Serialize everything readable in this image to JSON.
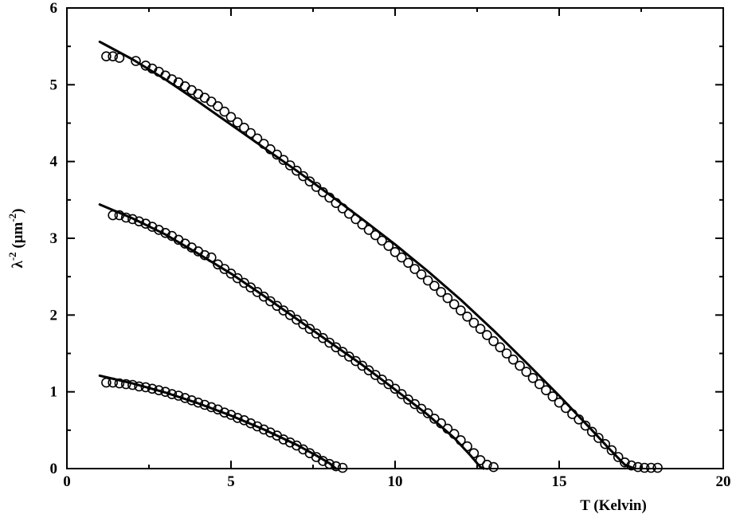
{
  "chart_data": {
    "type": "scatter",
    "title": "",
    "xlabel": "T (Kelvin)",
    "ylabel_parts": {
      "symbol": "λ",
      "sup1": "-2",
      "unit_open": " (μm",
      "sup2": "-2",
      "unit_close": ")"
    },
    "xlim": [
      0,
      20
    ],
    "ylim": [
      0,
      6
    ],
    "x_ticks": [
      0,
      5,
      10,
      15,
      20
    ],
    "y_ticks": [
      0,
      1,
      2,
      3,
      4,
      5,
      6
    ],
    "grid": false,
    "legend": "none",
    "colors": {
      "marker": "#000000",
      "line": "#000000",
      "background": "#ffffff"
    },
    "series": [
      {
        "points": [
          [
            1.2,
            5.37
          ],
          [
            1.4,
            5.37
          ],
          [
            1.6,
            5.35
          ],
          [
            2.1,
            5.31
          ],
          [
            2.4,
            5.25
          ],
          [
            2.6,
            5.21
          ],
          [
            2.8,
            5.17
          ],
          [
            3.0,
            5.12
          ],
          [
            3.2,
            5.07
          ],
          [
            3.4,
            5.03
          ],
          [
            3.6,
            4.98
          ],
          [
            3.8,
            4.93
          ],
          [
            4.0,
            4.88
          ],
          [
            4.2,
            4.83
          ],
          [
            4.4,
            4.78
          ],
          [
            4.6,
            4.72
          ],
          [
            4.8,
            4.65
          ],
          [
            5.0,
            4.58
          ],
          [
            5.2,
            4.51
          ],
          [
            5.4,
            4.44
          ],
          [
            5.6,
            4.37
          ],
          [
            5.8,
            4.3
          ],
          [
            6.0,
            4.23
          ],
          [
            6.2,
            4.16
          ],
          [
            6.4,
            4.09
          ],
          [
            6.6,
            4.02
          ],
          [
            6.8,
            3.95
          ],
          [
            7.0,
            3.88
          ],
          [
            7.2,
            3.81
          ],
          [
            7.4,
            3.74
          ],
          [
            7.6,
            3.67
          ],
          [
            7.8,
            3.6
          ],
          [
            8.0,
            3.53
          ],
          [
            8.2,
            3.46
          ],
          [
            8.4,
            3.39
          ],
          [
            8.6,
            3.32
          ],
          [
            8.8,
            3.25
          ],
          [
            9.0,
            3.18
          ],
          [
            9.2,
            3.11
          ],
          [
            9.4,
            3.04
          ],
          [
            9.6,
            2.97
          ],
          [
            9.8,
            2.9
          ],
          [
            10.0,
            2.82
          ],
          [
            10.2,
            2.75
          ],
          [
            10.4,
            2.68
          ],
          [
            10.6,
            2.6
          ],
          [
            10.8,
            2.53
          ],
          [
            11.0,
            2.45
          ],
          [
            11.2,
            2.38
          ],
          [
            11.4,
            2.3
          ],
          [
            11.6,
            2.22
          ],
          [
            11.8,
            2.14
          ],
          [
            12.0,
            2.06
          ],
          [
            12.2,
            1.98
          ],
          [
            12.4,
            1.9
          ],
          [
            12.6,
            1.82
          ],
          [
            12.8,
            1.74
          ],
          [
            13.0,
            1.66
          ],
          [
            13.2,
            1.58
          ],
          [
            13.4,
            1.5
          ],
          [
            13.6,
            1.42
          ],
          [
            13.8,
            1.34
          ],
          [
            14.0,
            1.26
          ],
          [
            14.2,
            1.18
          ],
          [
            14.4,
            1.1
          ],
          [
            14.6,
            1.02
          ],
          [
            14.8,
            0.94
          ],
          [
            15.0,
            0.86
          ],
          [
            15.2,
            0.79
          ],
          [
            15.4,
            0.71
          ],
          [
            15.6,
            0.64
          ],
          [
            15.8,
            0.56
          ],
          [
            16.0,
            0.48
          ],
          [
            16.2,
            0.4
          ],
          [
            16.4,
            0.32
          ],
          [
            16.6,
            0.24
          ],
          [
            16.8,
            0.15
          ],
          [
            17.0,
            0.08
          ],
          [
            17.2,
            0.04
          ],
          [
            17.4,
            0.02
          ],
          [
            17.6,
            0.01
          ],
          [
            17.8,
            0.01
          ],
          [
            18.0,
            0.01
          ]
        ],
        "fit": [
          [
            1.0,
            5.56
          ],
          [
            2.0,
            5.33
          ],
          [
            3.0,
            5.07
          ],
          [
            4.0,
            4.78
          ],
          [
            5.0,
            4.48
          ],
          [
            6.0,
            4.18
          ],
          [
            7.0,
            3.88
          ],
          [
            8.0,
            3.57
          ],
          [
            9.0,
            3.25
          ],
          [
            10.0,
            2.92
          ],
          [
            11.0,
            2.57
          ],
          [
            12.0,
            2.2
          ],
          [
            13.0,
            1.8
          ],
          [
            14.0,
            1.38
          ],
          [
            15.0,
            0.95
          ],
          [
            16.0,
            0.5
          ],
          [
            16.5,
            0.27
          ],
          [
            17.0,
            0.05
          ],
          [
            17.3,
            0.0
          ]
        ]
      },
      {
        "points": [
          [
            1.4,
            3.3
          ],
          [
            1.6,
            3.3
          ],
          [
            1.8,
            3.27
          ],
          [
            2.0,
            3.25
          ],
          [
            2.2,
            3.22
          ],
          [
            2.4,
            3.19
          ],
          [
            2.6,
            3.15
          ],
          [
            2.8,
            3.11
          ],
          [
            3.0,
            3.07
          ],
          [
            3.2,
            3.03
          ],
          [
            3.4,
            2.98
          ],
          [
            3.6,
            2.93
          ],
          [
            3.8,
            2.88
          ],
          [
            4.0,
            2.83
          ],
          [
            4.2,
            2.78
          ],
          [
            4.4,
            2.75
          ],
          [
            4.6,
            2.66
          ],
          [
            4.8,
            2.6
          ],
          [
            5.0,
            2.54
          ],
          [
            5.2,
            2.48
          ],
          [
            5.4,
            2.42
          ],
          [
            5.6,
            2.36
          ],
          [
            5.8,
            2.3
          ],
          [
            6.0,
            2.24
          ],
          [
            6.2,
            2.18
          ],
          [
            6.4,
            2.12
          ],
          [
            6.6,
            2.06
          ],
          [
            6.8,
            2.0
          ],
          [
            7.0,
            1.94
          ],
          [
            7.2,
            1.88
          ],
          [
            7.4,
            1.82
          ],
          [
            7.6,
            1.76
          ],
          [
            7.8,
            1.7
          ],
          [
            8.0,
            1.64
          ],
          [
            8.2,
            1.58
          ],
          [
            8.4,
            1.52
          ],
          [
            8.6,
            1.46
          ],
          [
            8.8,
            1.4
          ],
          [
            9.0,
            1.34
          ],
          [
            9.2,
            1.28
          ],
          [
            9.4,
            1.22
          ],
          [
            9.6,
            1.16
          ],
          [
            9.8,
            1.1
          ],
          [
            10.0,
            1.04
          ],
          [
            10.2,
            0.97
          ],
          [
            10.4,
            0.9
          ],
          [
            10.6,
            0.84
          ],
          [
            10.8,
            0.78
          ],
          [
            11.0,
            0.72
          ],
          [
            11.2,
            0.65
          ],
          [
            11.4,
            0.59
          ],
          [
            11.6,
            0.52
          ],
          [
            11.8,
            0.45
          ],
          [
            12.0,
            0.37
          ],
          [
            12.2,
            0.29
          ],
          [
            12.4,
            0.2
          ],
          [
            12.6,
            0.11
          ],
          [
            12.8,
            0.05
          ],
          [
            13.0,
            0.02
          ]
        ],
        "fit": [
          [
            1.0,
            3.44
          ],
          [
            2.0,
            3.26
          ],
          [
            3.0,
            3.05
          ],
          [
            4.0,
            2.8
          ],
          [
            5.0,
            2.54
          ],
          [
            6.0,
            2.25
          ],
          [
            7.0,
            1.95
          ],
          [
            8.0,
            1.65
          ],
          [
            9.0,
            1.35
          ],
          [
            10.0,
            1.03
          ],
          [
            11.0,
            0.7
          ],
          [
            11.8,
            0.4
          ],
          [
            12.3,
            0.17
          ],
          [
            12.6,
            0.02
          ],
          [
            12.7,
            0.0
          ]
        ]
      },
      {
        "points": [
          [
            1.2,
            1.12
          ],
          [
            1.4,
            1.12
          ],
          [
            1.6,
            1.11
          ],
          [
            1.8,
            1.1
          ],
          [
            2.0,
            1.09
          ],
          [
            2.2,
            1.07
          ],
          [
            2.4,
            1.06
          ],
          [
            2.6,
            1.04
          ],
          [
            2.8,
            1.02
          ],
          [
            3.0,
            1.0
          ],
          [
            3.2,
            0.97
          ],
          [
            3.4,
            0.95
          ],
          [
            3.6,
            0.92
          ],
          [
            3.8,
            0.89
          ],
          [
            4.0,
            0.86
          ],
          [
            4.2,
            0.83
          ],
          [
            4.4,
            0.8
          ],
          [
            4.6,
            0.77
          ],
          [
            4.8,
            0.73
          ],
          [
            5.0,
            0.7
          ],
          [
            5.2,
            0.66
          ],
          [
            5.4,
            0.63
          ],
          [
            5.6,
            0.59
          ],
          [
            5.8,
            0.55
          ],
          [
            6.0,
            0.51
          ],
          [
            6.2,
            0.47
          ],
          [
            6.4,
            0.43
          ],
          [
            6.6,
            0.38
          ],
          [
            6.8,
            0.34
          ],
          [
            7.0,
            0.3
          ],
          [
            7.2,
            0.25
          ],
          [
            7.4,
            0.2
          ],
          [
            7.6,
            0.15
          ],
          [
            7.8,
            0.1
          ],
          [
            8.0,
            0.06
          ],
          [
            8.2,
            0.03
          ],
          [
            8.4,
            0.01
          ]
        ],
        "fit": [
          [
            1.0,
            1.21
          ],
          [
            2.0,
            1.11
          ],
          [
            3.0,
            0.99
          ],
          [
            4.0,
            0.85
          ],
          [
            5.0,
            0.69
          ],
          [
            6.0,
            0.51
          ],
          [
            7.0,
            0.31
          ],
          [
            7.6,
            0.17
          ],
          [
            8.0,
            0.07
          ],
          [
            8.2,
            0.0
          ]
        ]
      }
    ]
  }
}
